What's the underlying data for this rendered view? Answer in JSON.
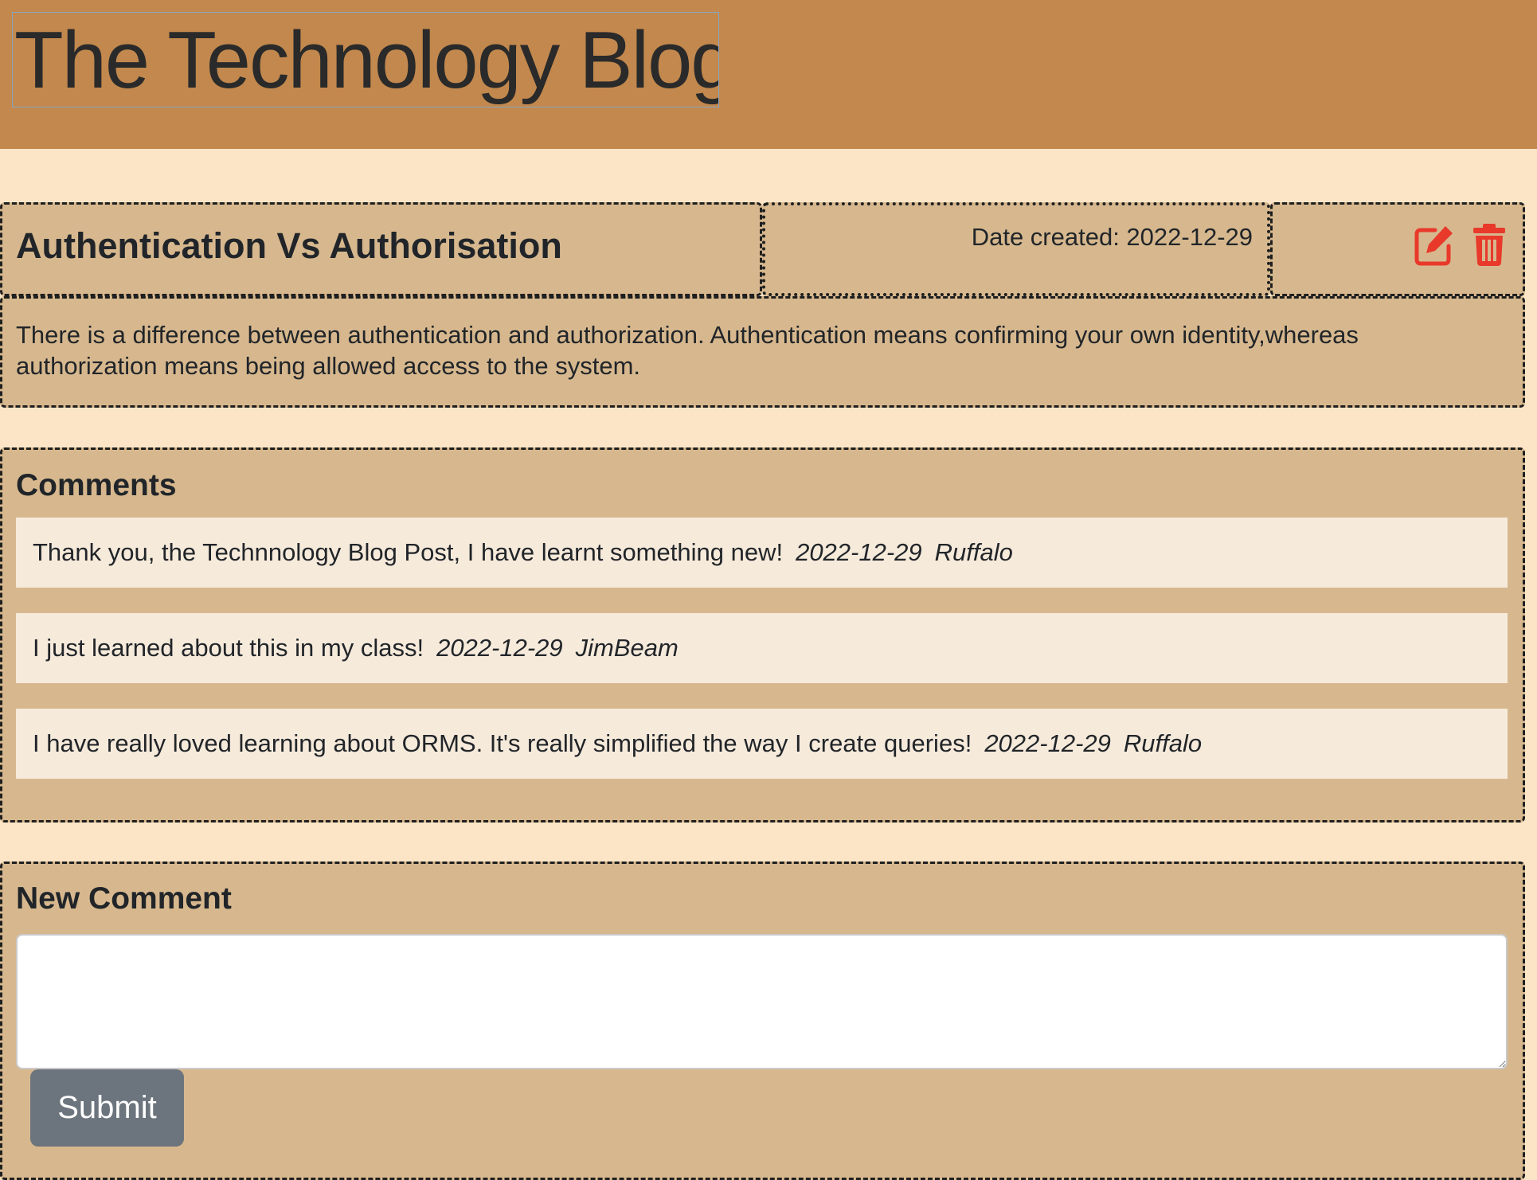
{
  "site": {
    "title": "The Technology Blog"
  },
  "post": {
    "title": "Authentication Vs Authorisation",
    "date_label": "Date created: 2022-12-29",
    "body": "There is a difference between authentication and authorization. Authentication means confirming your own identity,whereas authorization means being allowed access to the system.",
    "actions": {
      "edit_icon": "edit-icon",
      "delete_icon": "trash-icon"
    }
  },
  "comments": {
    "heading": "Comments",
    "items": [
      {
        "text": "Thank you, the Technnology Blog Post, I have learnt something new!",
        "date": "2022-12-29",
        "author": "Ruffalo"
      },
      {
        "text": "I just learned about this in my class!",
        "date": "2022-12-29",
        "author": "JimBeam"
      },
      {
        "text": "I have really loved learning about ORMS. It's really simplified the way I create queries!",
        "date": "2022-12-29",
        "author": "Ruffalo"
      }
    ]
  },
  "new_comment": {
    "heading": "New Comment",
    "value": "",
    "submit_label": "Submit"
  },
  "colors": {
    "header_bg": "#c2884d",
    "page_bg": "#fce5c7",
    "card_bg": "#d7b88e",
    "comment_bg": "#f6eadb",
    "icon_red": "#e8392b",
    "button_gray": "#6c757d"
  }
}
